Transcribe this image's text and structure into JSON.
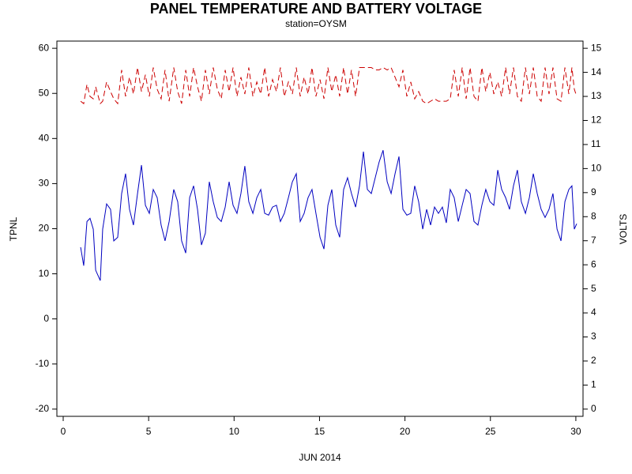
{
  "chart_data": {
    "type": "line",
    "title": "PANEL TEMPERATURE AND BATTERY VOLTAGE",
    "subtitle": "station=OYSM",
    "x_label": "JUN 2014",
    "y_label": "TPNL",
    "y2_label": "VOLTS",
    "xlim": [
      -0.37,
      30.42
    ],
    "xticks": [
      0,
      5,
      10,
      15,
      20,
      25,
      30
    ],
    "ylim": [
      -21.6,
      61.6
    ],
    "yticks": [
      -20,
      -10,
      0,
      10,
      20,
      30,
      40,
      50,
      60
    ],
    "y2lim": [
      -0.3,
      15.3
    ],
    "y2ticks": [
      0,
      1,
      2,
      3,
      4,
      5,
      6,
      7,
      8,
      9,
      10,
      11,
      12,
      13,
      14,
      15
    ],
    "x": [
      1.02,
      1.2,
      1.39,
      1.57,
      1.76,
      1.9,
      2.17,
      2.31,
      2.54,
      2.77,
      2.96,
      3.19,
      3.42,
      3.65,
      3.88,
      4.11,
      4.35,
      4.58,
      4.81,
      5.04,
      5.27,
      5.5,
      5.73,
      5.96,
      6.2,
      6.47,
      6.7,
      6.93,
      7.17,
      7.4,
      7.63,
      7.86,
      8.09,
      8.32,
      8.55,
      8.78,
      9.02,
      9.25,
      9.48,
      9.71,
      9.94,
      10.17,
      10.4,
      10.63,
      10.86,
      11.1,
      11.33,
      11.56,
      11.79,
      12.02,
      12.25,
      12.48,
      12.71,
      12.94,
      13.18,
      13.41,
      13.64,
      13.87,
      14.1,
      14.33,
      14.56,
      14.79,
      15.03,
      15.26,
      15.49,
      15.72,
      15.95,
      16.18,
      16.41,
      16.64,
      16.87,
      17.11,
      17.34,
      17.57,
      17.8,
      18.03,
      18.26,
      18.49,
      18.72,
      18.96,
      19.19,
      19.42,
      19.65,
      19.88,
      20.11,
      20.34,
      20.57,
      20.8,
      21.04,
      21.27,
      21.5,
      21.73,
      21.96,
      22.19,
      22.42,
      22.65,
      22.88,
      23.12,
      23.35,
      23.58,
      23.81,
      24.04,
      24.27,
      24.5,
      24.73,
      24.97,
      25.2,
      25.43,
      25.66,
      25.89,
      26.12,
      26.35,
      26.58,
      26.81,
      27.05,
      27.28,
      27.51,
      27.74,
      27.97,
      28.2,
      28.43,
      28.66,
      28.9,
      29.13,
      29.36,
      29.59,
      29.77,
      29.91,
      30.05
    ],
    "series": [
      {
        "name": "TPNL",
        "color": "#0000c0",
        "dashed": false,
        "values": [
          15.9,
          11.8,
          21.6,
          22.3,
          19.9,
          10.8,
          8.5,
          19.9,
          25.5,
          24.3,
          17.3,
          18.1,
          27.8,
          32.2,
          24.3,
          20.8,
          27.8,
          34.1,
          25.2,
          23.4,
          28.7,
          26.9,
          20.8,
          17.3,
          21.6,
          28.7,
          26.0,
          17.3,
          14.6,
          26.9,
          29.5,
          24.3,
          16.4,
          19.0,
          30.4,
          26.0,
          22.5,
          21.6,
          24.8,
          30.4,
          25.2,
          23.4,
          27.8,
          33.9,
          26.0,
          23.4,
          26.9,
          28.7,
          23.4,
          23.0,
          24.8,
          25.2,
          21.6,
          23.4,
          26.9,
          30.4,
          32.2,
          21.6,
          23.4,
          26.9,
          28.7,
          23.4,
          18.1,
          15.5,
          25.2,
          28.7,
          20.8,
          18.1,
          28.7,
          31.3,
          27.8,
          24.8,
          29.5,
          37.1,
          28.7,
          27.8,
          31.3,
          34.8,
          37.4,
          30.4,
          27.8,
          32.2,
          36.0,
          24.3,
          23.0,
          23.4,
          29.5,
          26.0,
          19.9,
          24.3,
          20.8,
          24.8,
          23.4,
          24.8,
          21.3,
          28.7,
          26.9,
          21.6,
          25.2,
          28.7,
          27.8,
          21.6,
          20.8,
          25.2,
          28.7,
          26.0,
          25.2,
          33.0,
          28.7,
          26.9,
          24.3,
          29.5,
          33.0,
          26.0,
          23.4,
          26.9,
          32.2,
          27.8,
          24.3,
          22.5,
          24.3,
          27.8,
          19.9,
          17.3,
          26.0,
          28.7,
          29.5,
          19.9,
          21.1
        ]
      },
      {
        "name": "VOLTS",
        "color": "#cc0000",
        "dashed": true,
        "axis": "y2",
        "values": [
          12.8,
          12.7,
          13.5,
          13.0,
          12.9,
          13.4,
          12.7,
          12.8,
          13.6,
          13.2,
          12.9,
          12.7,
          14.1,
          13.0,
          13.8,
          13.1,
          14.2,
          13.2,
          13.9,
          13.0,
          14.2,
          13.3,
          12.9,
          14.1,
          12.8,
          14.2,
          13.2,
          12.7,
          14.1,
          13.0,
          14.2,
          13.4,
          12.8,
          14.1,
          13.1,
          14.2,
          13.3,
          12.9,
          14.1,
          13.2,
          14.2,
          13.0,
          13.8,
          13.1,
          14.2,
          13.0,
          13.6,
          13.1,
          14.2,
          13.0,
          13.7,
          13.2,
          14.2,
          13.0,
          13.6,
          13.1,
          14.2,
          13.0,
          13.8,
          13.1,
          14.2,
          13.0,
          13.7,
          12.9,
          14.2,
          13.2,
          13.9,
          13.0,
          14.2,
          13.1,
          14.1,
          13.0,
          14.2,
          14.2,
          14.2,
          14.2,
          14.1,
          14.1,
          14.2,
          14.1,
          14.2,
          13.8,
          13.4,
          14.1,
          13.0,
          13.6,
          12.9,
          13.2,
          12.8,
          12.7,
          12.8,
          12.9,
          12.8,
          12.8,
          12.8,
          12.9,
          14.1,
          13.0,
          14.2,
          12.9,
          14.2,
          13.0,
          12.8,
          14.2,
          13.2,
          14.0,
          13.1,
          13.6,
          13.0,
          14.2,
          13.1,
          14.2,
          13.0,
          12.8,
          14.2,
          13.1,
          14.2,
          13.0,
          12.8,
          14.2,
          13.1,
          14.2,
          12.9,
          12.8,
          14.2,
          13.1,
          14.2,
          13.3,
          13.0
        ]
      }
    ]
  }
}
